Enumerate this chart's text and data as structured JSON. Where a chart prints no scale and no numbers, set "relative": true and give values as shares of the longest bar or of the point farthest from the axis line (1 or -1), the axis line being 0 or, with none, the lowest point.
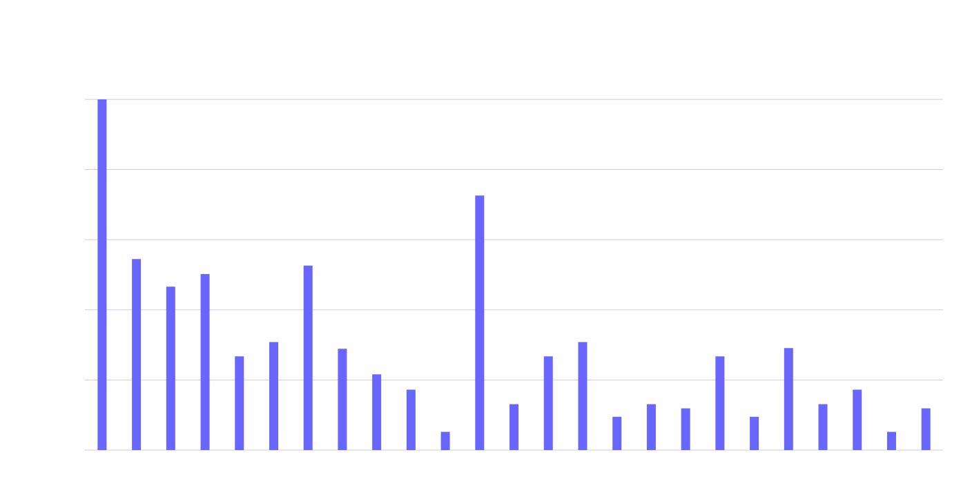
{
  "chart_data": {
    "type": "bar",
    "relative": true,
    "grid": "y",
    "color": "#6966ff",
    "categories": [
      null,
      null,
      null,
      null,
      null,
      null,
      null,
      null,
      null,
      null,
      null,
      null,
      null,
      null,
      null,
      null,
      null,
      null,
      null,
      null,
      null,
      null,
      null,
      null,
      null
    ],
    "values": [
      1,
      0.545,
      0.466,
      0.502,
      0.267,
      0.308,
      0.526,
      0.289,
      0.216,
      0.172,
      0.052,
      0.726,
      0.131,
      0.267,
      0.308,
      0.095,
      0.131,
      0.119,
      0.267,
      0.095,
      0.291,
      0.131,
      0.172,
      0.052,
      0.119
    ]
  }
}
